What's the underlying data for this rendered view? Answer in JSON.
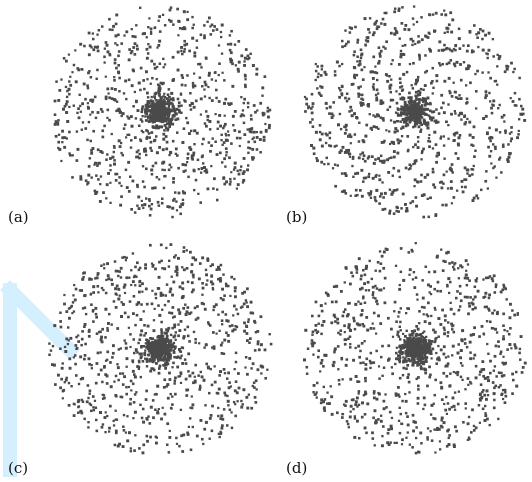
{
  "figure": {
    "panels": [
      {
        "id": "a",
        "label": "(a)",
        "style": "uniform-dense-core",
        "point_count": 1300
      },
      {
        "id": "b",
        "label": "(b)",
        "style": "spiral-arms",
        "point_count": 1300
      },
      {
        "id": "c",
        "label": "(c)",
        "style": "uniform-dense-core",
        "point_count": 1300
      },
      {
        "id": "d",
        "label": "(d)",
        "style": "spiral-swirl",
        "point_count": 1300
      }
    ],
    "point_color": "#4a4a4a",
    "watermark_color": "#cfefff"
  }
}
